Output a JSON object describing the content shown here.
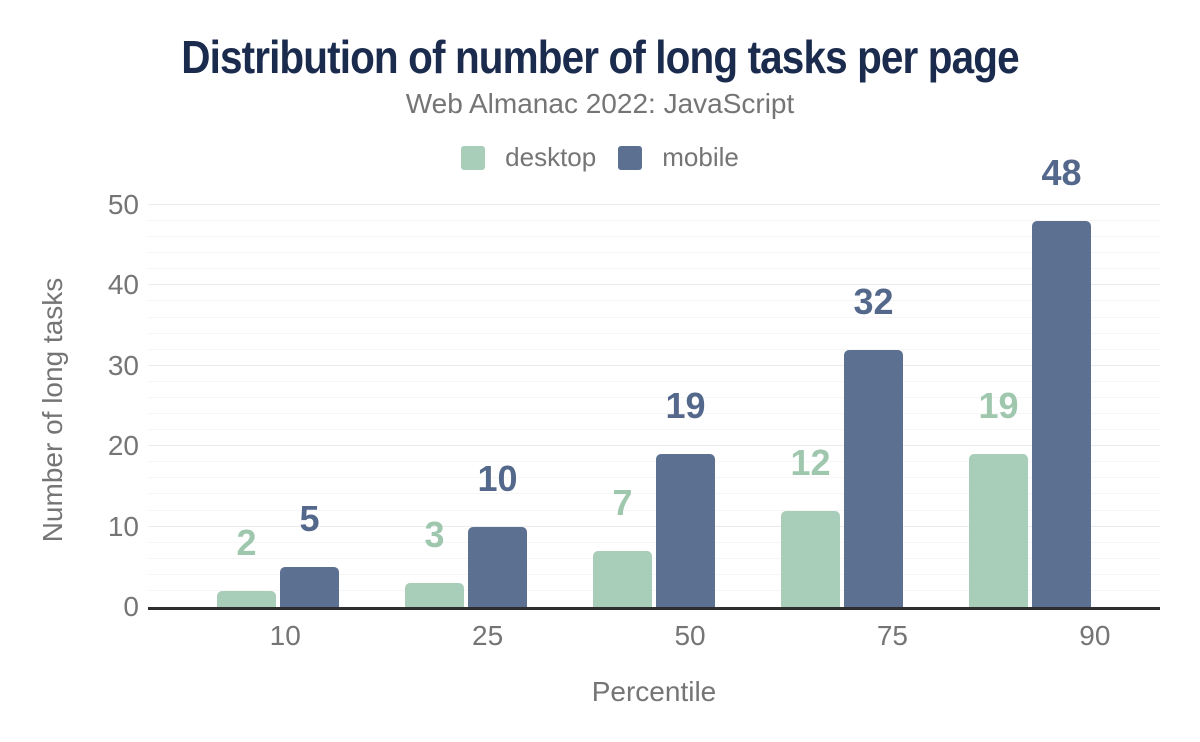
{
  "chart_data": {
    "type": "bar",
    "title": "Distribution of number of long tasks per page",
    "subtitle": "Web Almanac 2022: JavaScript",
    "categories": [
      "10",
      "25",
      "50",
      "75",
      "90"
    ],
    "series": [
      {
        "name": "desktop",
        "values": [
          2,
          3,
          7,
          12,
          19
        ],
        "color": "#a8cdb8",
        "label_color": "#9ec7ae"
      },
      {
        "name": "mobile",
        "values": [
          5,
          10,
          19,
          32,
          48
        ],
        "color": "#5c7191",
        "label_color": "#54688c"
      }
    ],
    "xlabel": "Percentile",
    "ylabel": "Number of long tasks",
    "ylim": [
      0,
      50
    ],
    "y_ticks": [
      0,
      10,
      20,
      30,
      40,
      50
    ],
    "grid": {
      "minor_step": 2,
      "major_step": 10,
      "minor_color": "#f6f6f6",
      "major_color": "#ebebeb"
    },
    "legend_position": "top",
    "colors": {
      "title": "#1b2b4d",
      "muted_text": "#757575",
      "axis_line": "#2e2e2e",
      "background": "#ffffff"
    }
  }
}
